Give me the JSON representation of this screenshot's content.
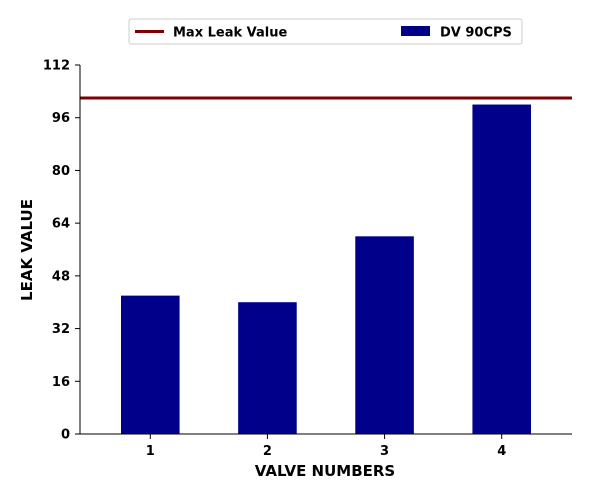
{
  "chart_data": {
    "type": "bar",
    "xlabel": "VALVE NUMBERS",
    "ylabel": "LEAK VALUE",
    "categories": [
      "1",
      "2",
      "3",
      "4"
    ],
    "series": [
      {
        "name": "DV 90CPS",
        "values": [
          42,
          40,
          60,
          100
        ],
        "color": "#00008B"
      }
    ],
    "reference_lines": [
      {
        "name": "Max Leak Value",
        "value": 102,
        "color": "#800000"
      }
    ],
    "ylim": [
      0,
      112
    ],
    "yticks": [
      0,
      16,
      32,
      48,
      64,
      80,
      96,
      112
    ],
    "grid": false,
    "legend_position": "top-center"
  }
}
